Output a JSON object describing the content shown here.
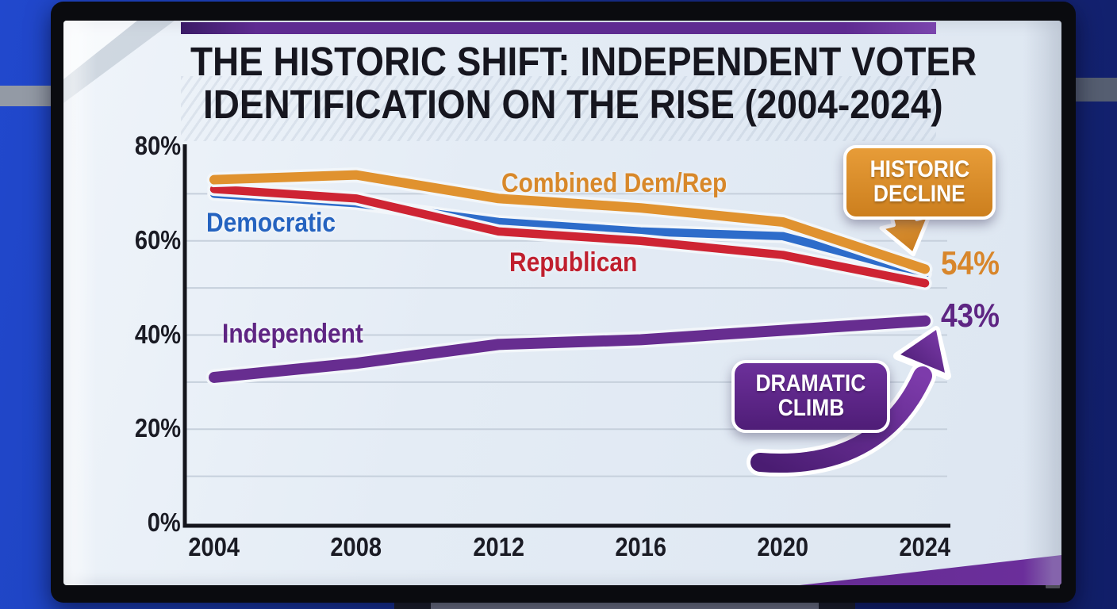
{
  "slide": {
    "title_line1": "THE HISTORIC SHIFT: INDEPENDENT VOTER",
    "title_line2": "IDENTIFICATION ON THE RISE (2004-2024)"
  },
  "chart_data": {
    "type": "line",
    "title": "The Historic Shift: Independent Voter Identification on the Rise (2004-2024)",
    "x": [
      2004,
      2008,
      2012,
      2016,
      2020,
      2024
    ],
    "x_tick_labels": [
      "2004",
      "2008",
      "2012",
      "2016",
      "2020",
      "2024"
    ],
    "y_tick_labels": [
      "80%",
      "60%",
      "40%",
      "20%",
      "0%"
    ],
    "ylim": [
      0,
      80
    ],
    "xlabel": "",
    "ylabel": "",
    "grid": true,
    "legend_position": "labels-on-chart",
    "series": [
      {
        "name": "Combined Dem/Rep",
        "color": "#e0922f",
        "label_color": "#d8882a",
        "values": [
          73,
          74,
          69,
          67,
          64,
          54
        ]
      },
      {
        "name": "Democratic",
        "color": "#2d6cca",
        "label_color": "#2563c0",
        "values": [
          70,
          68,
          64,
          62,
          61,
          53
        ]
      },
      {
        "name": "Republican",
        "color": "#ce2433",
        "label_color": "#c01f2e",
        "values": [
          71,
          69,
          62,
          60,
          57,
          51
        ]
      },
      {
        "name": "Independent",
        "color": "#672d90",
        "label_color": "#5f2583",
        "values": [
          31,
          34,
          38,
          39,
          41,
          43
        ]
      }
    ],
    "end_labels": [
      {
        "text": "54%",
        "color": "#d8862b"
      },
      {
        "text": "43%",
        "color": "#5e2583"
      }
    ]
  },
  "annotations": {
    "historic_decline": {
      "text_line1": "HISTORIC",
      "text_line2": "DECLINE",
      "fill": "#d9882b"
    },
    "dramatic_climb": {
      "text_line1": "DRAMATIC",
      "text_line2": "CLIMB",
      "fill": "#5c2483"
    }
  }
}
